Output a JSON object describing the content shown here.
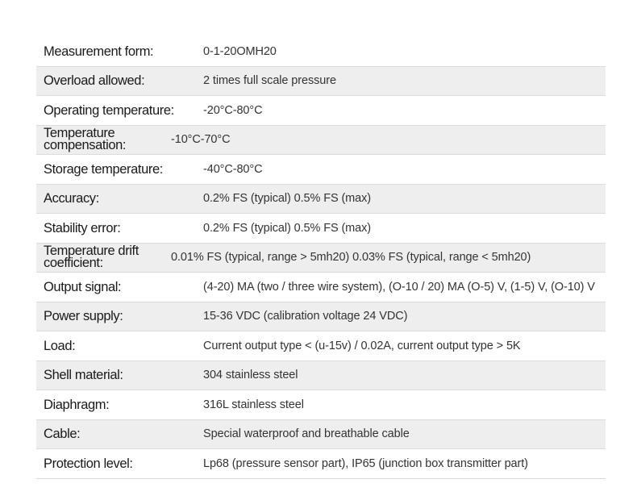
{
  "specs": [
    {
      "label": "Measurement form:",
      "value": "0-1-20OMH20"
    },
    {
      "label": "Overload allowed:",
      "value": "2 times full scale pressure"
    },
    {
      "label": "Operating temperature:",
      "value": "-20°C-80°C"
    },
    {
      "label": "Temperature compensation:",
      "value": "-10°C-70°C"
    },
    {
      "label": "Storage temperature:",
      "value": "-40°C-80°C"
    },
    {
      "label": "Accuracy:",
      "value": "0.2% FS (typical) 0.5% FS (max)"
    },
    {
      "label": "Stability error:",
      "value": "0.2% FS (typical) 0.5% FS (max)"
    },
    {
      "label": "Temperature drift coefficient:",
      "value": "0.01% FS (typical, range > 5mh20) 0.03% FS (typical, range < 5mh20)"
    },
    {
      "label": "Output signal:",
      "value": "(4-20) MA (two / three wire system), (O-10 / 20) MA (O-5) V, (1-5) V, (O-10) V"
    },
    {
      "label": "Power supply:",
      "value": "15-36 VDC (calibration voltage 24 VDC)"
    },
    {
      "label": "Load:",
      "value": "Current output type < (u-15v) / 0.02A, current output type > 5K"
    },
    {
      "label": "Shell material:",
      "value": "304 stainless steel"
    },
    {
      "label": "Diaphragm:",
      "value": "316L stainless steel"
    },
    {
      "label": "Cable:",
      "value": "Special waterproof and breathable cable"
    },
    {
      "label": "Protection level:",
      "value": "Lp68 (pressure sensor part), IP65 (junction box transmitter part)"
    }
  ]
}
